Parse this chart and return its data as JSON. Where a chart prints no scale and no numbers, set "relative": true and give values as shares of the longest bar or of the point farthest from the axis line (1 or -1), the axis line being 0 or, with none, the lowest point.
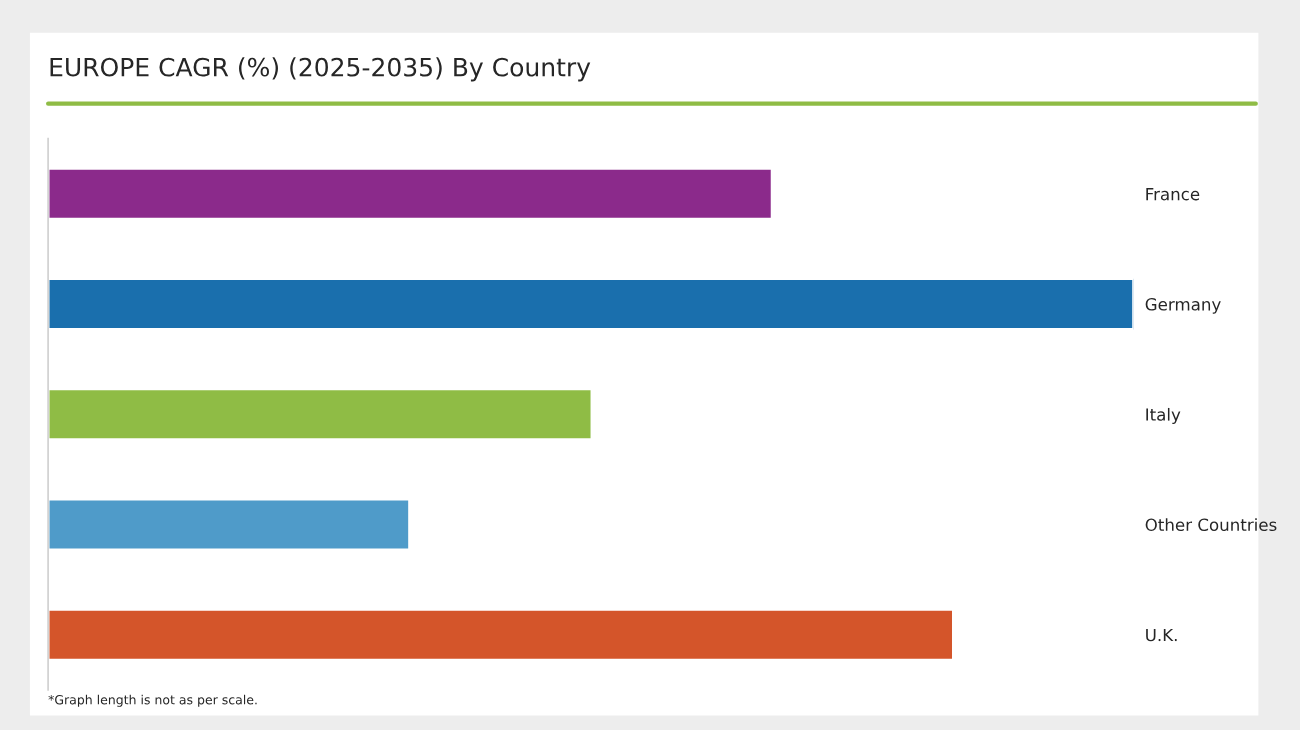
{
  "chart_data": {
    "type": "bar",
    "orientation": "horizontal",
    "relative": true,
    "tick_labels": "y",
    "title": "EUROPE CAGR (%) (2025-2035) By Country",
    "categories": [
      "France",
      "Germany",
      "Italy",
      "Other Countries",
      "U.K."
    ],
    "values": [
      0.667,
      1,
      0.501,
      0.333,
      0.834
    ],
    "colors": [
      "#8b2a8b",
      "#1a6fad",
      "#8fbc45",
      "#4f9bc9",
      "#d4552a"
    ],
    "annotations": [
      "*Graph length is not as per scale."
    ]
  }
}
